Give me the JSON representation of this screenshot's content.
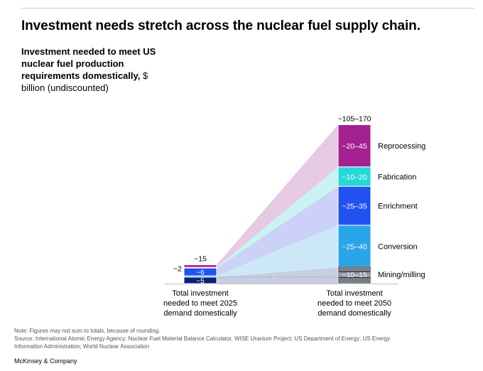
{
  "title": "Investment needs stretch across the nuclear fuel supply chain.",
  "subtitle_bold": "Investment needed to meet US nuclear fuel production requirements domestically,",
  "subtitle_unit": "$ billion (undiscounted)",
  "note": "Note: Figures may not sum to totals, because of rounding.",
  "source_line1": "Source: International Atomic Energy Agency: Nuclear Fuel Material Balance Calculator, WISE Uranium Project; US Department of Energy; US Energy",
  "source_line2": "Information Administration; World Nuclear Association",
  "brand": "McKinsey & Company",
  "chart_data": {
    "type": "bar",
    "stacked": true,
    "categories": [
      "Total investment needed to meet 2025 demand domestically",
      "Total investment needed to meet 2050 demand domestically"
    ],
    "category_lines": [
      [
        "Total investment",
        "needed to meet 2025",
        "demand domestically"
      ],
      [
        "Total investment",
        "needed to meet 2050",
        "demand domestically"
      ]
    ],
    "totals": [
      "~15",
      "~105–170"
    ],
    "series": [
      {
        "name": "Mining/milling",
        "values": [
          5,
          12.5
        ],
        "labels": [
          "~5",
          "~10–15"
        ],
        "color": "#0b1f7a",
        "band_color": "#c4cbe0"
      },
      {
        "name": "Conversion",
        "values": [
          1,
          32.5
        ],
        "labels": [
          "",
          "~25–40"
        ],
        "color": "#2aa5ea",
        "band_color": "#c9e7f8"
      },
      {
        "name": "Enrichment",
        "values": [
          6,
          30
        ],
        "labels": [
          "~6",
          "~25–35"
        ],
        "color": "#2251f0",
        "band_color": "#c9d0f7"
      },
      {
        "name": "Fabrication",
        "values": [
          0.5,
          15
        ],
        "labels": [
          "",
          "~10–20"
        ],
        "color": "#27d8d8",
        "band_color": "#c7f1f1"
      },
      {
        "name": "Reprocessing",
        "values": [
          2,
          32.5
        ],
        "labels": [
          "~2",
          "~20–45"
        ],
        "color": "#a3228f",
        "band_color": "#e5c6e0"
      }
    ]
  }
}
